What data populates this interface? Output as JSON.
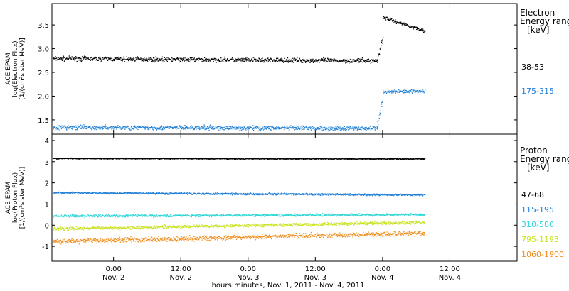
{
  "xlabel": "hours:minutes, Nov.  1, 2011 - Nov.  4, 2011",
  "x_ticks": [
    {
      "t": 24,
      "time": "0:00",
      "day": "Nov. 2"
    },
    {
      "t": 36,
      "time": "12:00",
      "day": "Nov. 2"
    },
    {
      "t": 48,
      "time": "0:00",
      "day": "Nov. 3"
    },
    {
      "t": 60,
      "time": "12:00",
      "day": "Nov. 3"
    },
    {
      "t": 72,
      "time": "0:00",
      "day": "Nov. 4"
    },
    {
      "t": 84,
      "time": "12:00",
      "day": "Nov. 4"
    }
  ],
  "chart_data": [
    {
      "type": "scatter",
      "ylabel_lines": [
        "ACE EPAM",
        "log(Electron Flux)",
        "[1/(cm²s ster MeV)]"
      ],
      "legend_title_lines": [
        "Electron",
        "Energy ranges",
        "[keV]"
      ],
      "xlim_hours": [
        13,
        96
      ],
      "ylim": [
        1.2,
        3.95
      ],
      "y_ticks": [
        "1.5",
        "2.0",
        "2.5",
        "3.0",
        "3.5"
      ],
      "grid": false,
      "series": [
        {
          "name": "38-53",
          "color": "#000000",
          "segments": [
            {
              "t0": 13,
              "t1": 71,
              "v0": 2.8,
              "v1": 2.75,
              "noise": 0.05
            },
            {
              "t0": 71,
              "t1": 72,
              "v0": 2.75,
              "v1": 3.25,
              "noise": 0.08
            },
            {
              "t0": 72,
              "t1": 79.5,
              "v0": 3.67,
              "v1": 3.38,
              "noise": 0.04
            }
          ]
        },
        {
          "name": "175-315",
          "color": "#1f7fd6",
          "segments": [
            {
              "t0": 13,
              "t1": 71,
              "v0": 1.35,
              "v1": 1.33,
              "noise": 0.05
            },
            {
              "t0": 71,
              "t1": 72,
              "v0": 1.4,
              "v1": 1.95,
              "noise": 0.1
            },
            {
              "t0": 72,
              "t1": 79.5,
              "v0": 2.1,
              "v1": 2.12,
              "noise": 0.04
            }
          ]
        }
      ]
    },
    {
      "type": "scatter",
      "ylabel_lines": [
        "ACE EPAM",
        "log(Proton Flux)",
        "[1/(cm²s ster MeV)]"
      ],
      "legend_title_lines": [
        "Proton",
        "Energy ranges",
        "[keV]"
      ],
      "xlim_hours": [
        13,
        96
      ],
      "ylim": [
        -1.7,
        4.3
      ],
      "y_ticks": [
        "-1",
        "0",
        "1",
        "2",
        "3",
        "4"
      ],
      "grid": false,
      "series": [
        {
          "name": "47-68",
          "color": "#000000",
          "segments": [
            {
              "t0": 13,
              "t1": 79.5,
              "v0": 3.17,
              "v1": 3.15,
              "noise": 0.03
            }
          ]
        },
        {
          "name": "115-195",
          "color": "#1f7fd6",
          "segments": [
            {
              "t0": 13,
              "t1": 79.5,
              "v0": 1.55,
              "v1": 1.45,
              "noise": 0.05
            }
          ]
        },
        {
          "name": "310-580",
          "color": "#2ed6d6",
          "segments": [
            {
              "t0": 13,
              "t1": 79.5,
              "v0": 0.45,
              "v1": 0.52,
              "noise": 0.06
            }
          ]
        },
        {
          "name": "795-1193",
          "color": "#c8e21e",
          "segments": [
            {
              "t0": 13,
              "t1": 79.5,
              "v0": -0.15,
              "v1": 0.15,
              "noise": 0.08
            }
          ]
        },
        {
          "name": "1060-1900",
          "color": "#f08c1a",
          "segments": [
            {
              "t0": 13,
              "t1": 79.5,
              "v0": -0.75,
              "v1": -0.35,
              "noise": 0.12
            }
          ]
        }
      ]
    }
  ]
}
